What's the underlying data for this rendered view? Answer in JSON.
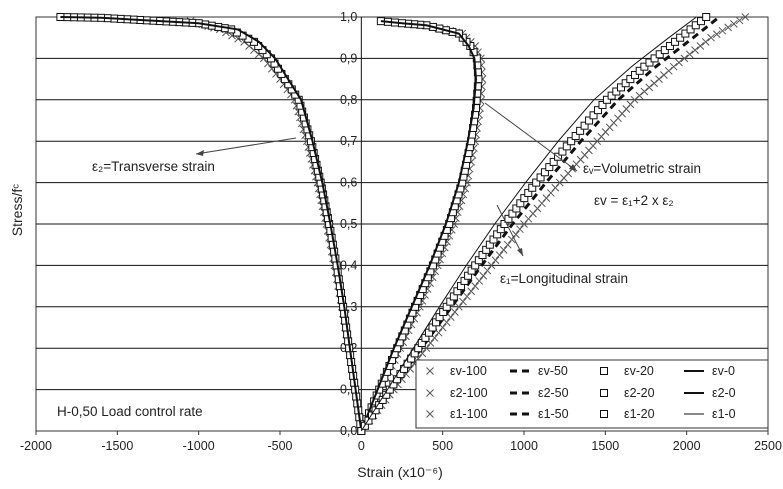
{
  "chart_data": {
    "type": "line",
    "title": "",
    "xlabel": "Strain (x10⁻⁶)",
    "ylabel": "Stress/fᶜ",
    "xlim": [
      -2000,
      2500
    ],
    "ylim": [
      0,
      1.0
    ],
    "x_ticks": [
      "-2000",
      "-1500",
      "-1000",
      "-500",
      "0",
      "500",
      "1000",
      "1500",
      "2000",
      "2500"
    ],
    "y_ticks": [
      "0,0",
      "0,1",
      "0,2",
      "0,3",
      "0,4",
      "0,5",
      "0,6",
      "0,7",
      "0,8",
      "0,9",
      "1,0"
    ],
    "grid": "horizontal",
    "legend_position": "bottom-right",
    "annotations": {
      "transverse": "ε₂=Transverse strain",
      "volumetric": "εᵥ=Volumetric strain",
      "formula": "εv = ε₁+2 x ε₂",
      "longitudinal": "ε₁=Longitudinal strain",
      "load_label": "H-0,50 Load control rate"
    },
    "series": [
      {
        "name": "εv-100",
        "marker": "x",
        "x": [
          0,
          120,
          240,
          360,
          470,
          570,
          650,
          700,
          730,
          745,
          735,
          700,
          620,
          400,
          250,
          120
        ],
        "y": [
          0,
          0.1,
          0.2,
          0.3,
          0.4,
          0.5,
          0.6,
          0.7,
          0.78,
          0.85,
          0.9,
          0.93,
          0.96,
          0.98,
          0.985,
          0.99
        ]
      },
      {
        "name": "εv-50",
        "marker": "dash",
        "x": [
          0,
          115,
          230,
          345,
          455,
          555,
          635,
          690,
          720,
          735,
          720,
          680,
          600,
          400,
          250,
          120
        ],
        "y": [
          0,
          0.1,
          0.2,
          0.3,
          0.4,
          0.5,
          0.6,
          0.7,
          0.78,
          0.85,
          0.9,
          0.93,
          0.96,
          0.98,
          0.985,
          0.99
        ]
      },
      {
        "name": "εv-20",
        "marker": "square",
        "x": [
          0,
          110,
          220,
          330,
          440,
          540,
          620,
          675,
          705,
          720,
          710,
          670,
          600,
          400,
          250,
          120
        ],
        "y": [
          0,
          0.1,
          0.2,
          0.3,
          0.4,
          0.5,
          0.6,
          0.7,
          0.78,
          0.85,
          0.9,
          0.93,
          0.96,
          0.98,
          0.985,
          0.99
        ]
      },
      {
        "name": "εv-0",
        "marker": "line",
        "x": [
          0,
          100,
          200,
          310,
          420,
          520,
          600,
          655,
          690,
          705,
          695,
          660,
          600,
          400,
          250,
          120
        ],
        "y": [
          0,
          0.1,
          0.2,
          0.3,
          0.4,
          0.5,
          0.6,
          0.7,
          0.78,
          0.85,
          0.9,
          0.93,
          0.96,
          0.98,
          0.985,
          0.99
        ]
      },
      {
        "name": "ε2-100",
        "marker": "x",
        "x": [
          0,
          -40,
          -80,
          -120,
          -165,
          -215,
          -270,
          -335,
          -410,
          -500,
          -600,
          -720,
          -870,
          -1050
        ],
        "y": [
          0,
          0.1,
          0.2,
          0.3,
          0.4,
          0.5,
          0.6,
          0.7,
          0.8,
          0.85,
          0.9,
          0.94,
          0.97,
          0.99
        ]
      },
      {
        "name": "ε2-50",
        "marker": "dash",
        "x": [
          0,
          -40,
          -78,
          -116,
          -158,
          -205,
          -260,
          -320,
          -395,
          -480,
          -570,
          -680,
          -820,
          -1000,
          -1400,
          -1850
        ],
        "y": [
          0,
          0.1,
          0.2,
          0.3,
          0.4,
          0.5,
          0.6,
          0.7,
          0.8,
          0.85,
          0.9,
          0.94,
          0.97,
          0.985,
          0.995,
          1.0
        ]
      },
      {
        "name": "ε2-20",
        "marker": "square",
        "x": [
          0,
          -38,
          -75,
          -112,
          -152,
          -198,
          -250,
          -310,
          -385,
          -470,
          -555,
          -660,
          -800,
          -1000,
          -1600,
          -1850
        ],
        "y": [
          0,
          0.1,
          0.2,
          0.3,
          0.4,
          0.5,
          0.6,
          0.7,
          0.8,
          0.85,
          0.9,
          0.94,
          0.97,
          0.985,
          0.998,
          1.0
        ]
      },
      {
        "name": "ε2-0",
        "marker": "line",
        "x": [
          0,
          -35,
          -70,
          -105,
          -145,
          -190,
          -240,
          -300,
          -370,
          -450,
          -530,
          -630,
          -760,
          -1000,
          -1600,
          -1850
        ],
        "y": [
          0,
          0.1,
          0.2,
          0.3,
          0.4,
          0.5,
          0.6,
          0.7,
          0.8,
          0.85,
          0.9,
          0.94,
          0.97,
          0.985,
          0.998,
          1.0
        ]
      },
      {
        "name": "ε1-100",
        "marker": "x",
        "x": [
          0,
          200,
          400,
          600,
          800,
          1000,
          1220,
          1450,
          1680,
          1920,
          2150,
          2360
        ],
        "y": [
          0,
          0.1,
          0.2,
          0.3,
          0.4,
          0.5,
          0.6,
          0.7,
          0.8,
          0.88,
          0.95,
          1.0
        ]
      },
      {
        "name": "ε1-50",
        "marker": "dash",
        "x": [
          0,
          185,
          370,
          555,
          740,
          930,
          1135,
          1350,
          1580,
          1810,
          2040,
          2200
        ],
        "y": [
          0,
          0.1,
          0.2,
          0.3,
          0.4,
          0.5,
          0.6,
          0.7,
          0.8,
          0.88,
          0.95,
          1.0
        ]
      },
      {
        "name": "ε1-20",
        "marker": "square",
        "x": [
          0,
          175,
          350,
          525,
          700,
          880,
          1075,
          1290,
          1510,
          1740,
          1960,
          2120
        ],
        "y": [
          0,
          0.1,
          0.2,
          0.3,
          0.4,
          0.5,
          0.6,
          0.7,
          0.8,
          0.88,
          0.95,
          1.0
        ]
      },
      {
        "name": "ε1-0",
        "marker": "thin-line",
        "x": [
          0,
          160,
          320,
          480,
          645,
          820,
          1010,
          1210,
          1430,
          1660,
          1890,
          2060
        ],
        "y": [
          0,
          0.1,
          0.2,
          0.3,
          0.4,
          0.5,
          0.6,
          0.7,
          0.8,
          0.88,
          0.95,
          1.0
        ]
      }
    ]
  }
}
